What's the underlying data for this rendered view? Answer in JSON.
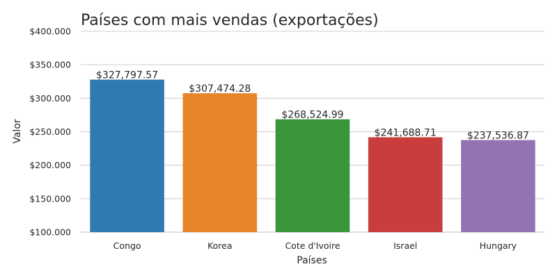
{
  "chart_data": {
    "type": "bar",
    "title": "Países com mais vendas (exportações)",
    "xlabel": "Países",
    "ylabel": "Valor",
    "categories": [
      "Congo",
      "Korea",
      "Cote d'Ivoire",
      "Israel",
      "Hungary"
    ],
    "values": [
      327797.57,
      307474.28,
      268524.99,
      241688.71,
      237536.87
    ],
    "value_labels": [
      "$327,797.57",
      "$307,474.28",
      "$268,524.99",
      "$241,688.71",
      "$237,536.87"
    ],
    "ylim": [
      100000,
      400000
    ],
    "yticks": [
      100000,
      150000,
      200000,
      250000,
      300000,
      350000,
      400000
    ],
    "ytick_labels": [
      "$100.000",
      "$150.000",
      "$200.000",
      "$250.000",
      "$300.000",
      "$350.000",
      "$400.000"
    ],
    "colors": [
      "#2f7bb1",
      "#e8842c",
      "#3a963a",
      "#c93d3d",
      "#9473b3"
    ],
    "grid": "horizontal",
    "legend": "none"
  }
}
